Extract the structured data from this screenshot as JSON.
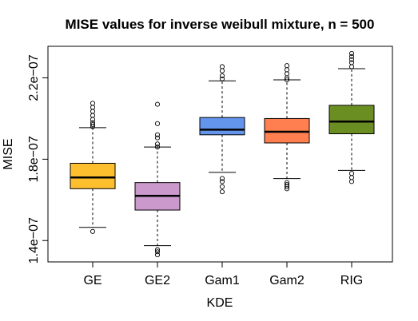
{
  "chart_data": {
    "type": "boxplot",
    "title": "MISE values for inverse weibull mixture, n = 500",
    "xlabel": "KDE",
    "ylabel": "MISE",
    "ylim": [
      1.295e-07,
      2.355e-07
    ],
    "yticks": [
      1.4e-07,
      1.8e-07,
      2.2e-07
    ],
    "ytick_labels": [
      "1.4e−07",
      "1.8e−07",
      "2.2e−07"
    ],
    "grid": false,
    "legend": "none",
    "categories": [
      "GE",
      "GE2",
      "Gam1",
      "Gam2",
      "RIG"
    ],
    "boxes": [
      {
        "name": "GE",
        "color": "#FDBF2D",
        "whisker_low": 1.465e-07,
        "q1": 1.655e-07,
        "median": 1.71e-07,
        "q3": 1.78e-07,
        "whisker_high": 1.955e-07,
        "outliers": [
          1.445e-07,
          1.96e-07,
          1.97e-07,
          1.98e-07,
          1.995e-07,
          2.015e-07,
          2.035e-07,
          2.055e-07,
          2.075e-07
        ]
      },
      {
        "name": "GE2",
        "color": "#CC99CC",
        "whisker_low": 1.375e-07,
        "q1": 1.55e-07,
        "median": 1.62e-07,
        "q3": 1.685e-07,
        "whisker_high": 1.86e-07,
        "outliers": [
          1.33e-07,
          1.345e-07,
          1.355e-07,
          1.86e-07,
          1.875e-07,
          1.905e-07,
          1.92e-07,
          1.975e-07,
          2.07e-07
        ]
      },
      {
        "name": "Gam1",
        "color": "#6495ED",
        "whisker_low": 1.735e-07,
        "q1": 1.92e-07,
        "median": 1.945e-07,
        "q3": 2.005e-07,
        "whisker_high": 2.185e-07,
        "outliers": [
          1.64e-07,
          1.665e-07,
          1.69e-07,
          1.705e-07,
          2.195e-07,
          2.21e-07,
          2.235e-07,
          2.255e-07
        ]
      },
      {
        "name": "Gam2",
        "color": "#FF7F50",
        "whisker_low": 1.705e-07,
        "q1": 1.88e-07,
        "median": 1.935e-07,
        "q3": 2e-07,
        "whisker_high": 2.19e-07,
        "outliers": [
          1.655e-07,
          1.665e-07,
          1.675e-07,
          1.685e-07,
          2.19e-07,
          2.2e-07,
          2.22e-07,
          2.24e-07,
          2.26e-07
        ]
      },
      {
        "name": "RIG",
        "color": "#6B8E23",
        "whisker_low": 1.745e-07,
        "q1": 1.925e-07,
        "median": 1.985e-07,
        "q3": 2.065e-07,
        "whisker_high": 2.245e-07,
        "outliers": [
          1.69e-07,
          1.71e-07,
          1.73e-07,
          2.255e-07,
          2.275e-07,
          2.29e-07,
          2.305e-07,
          2.32e-07
        ]
      }
    ]
  }
}
